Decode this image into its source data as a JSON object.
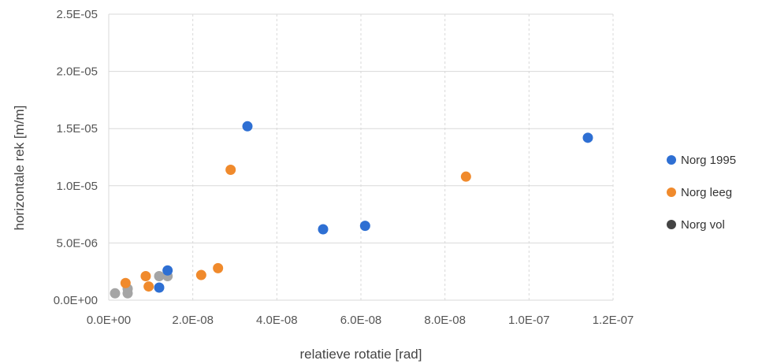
{
  "chart_data": {
    "type": "scatter",
    "xlabel": "relatieve rotatie [rad]",
    "ylabel": "horizontale rek [m/m]",
    "xlim": [
      0,
      1.2e-07
    ],
    "ylim": [
      0,
      2.5e-05
    ],
    "x_ticks": [
      {
        "value": 0,
        "label": "0.0E+00"
      },
      {
        "value": 2e-08,
        "label": "2.0E-08"
      },
      {
        "value": 4e-08,
        "label": "4.0E-08"
      },
      {
        "value": 6e-08,
        "label": "6.0E-08"
      },
      {
        "value": 8e-08,
        "label": "8.0E-08"
      },
      {
        "value": 1e-07,
        "label": "1.0E-07"
      },
      {
        "value": 1.2e-07,
        "label": "1.2E-07"
      }
    ],
    "y_ticks": [
      {
        "value": 0,
        "label": "0.0E+00"
      },
      {
        "value": 5e-06,
        "label": "5.0E-06"
      },
      {
        "value": 1e-05,
        "label": "1.0E-05"
      },
      {
        "value": 1.5e-05,
        "label": "1.5E-05"
      },
      {
        "value": 2e-05,
        "label": "2.0E-05"
      },
      {
        "value": 2.5e-05,
        "label": "2.5E-05"
      }
    ],
    "grid": true,
    "legend_position": "right",
    "series": [
      {
        "name": "Norg 1995",
        "color": "#2e6fd3",
        "points": [
          {
            "x": 3.3e-08,
            "y": 1.52e-05
          },
          {
            "x": 1.14e-07,
            "y": 1.42e-05
          },
          {
            "x": 6.1e-08,
            "y": 6.5e-06
          },
          {
            "x": 5.1e-08,
            "y": 6.2e-06
          },
          {
            "x": 1.4e-08,
            "y": 2.6e-06
          },
          {
            "x": 1.2e-08,
            "y": 1.1e-06
          }
        ]
      },
      {
        "name": "Norg leeg",
        "color": "#f08a2c",
        "points": [
          {
            "x": 8.5e-08,
            "y": 1.08e-05
          },
          {
            "x": 2.9e-08,
            "y": 1.14e-05
          },
          {
            "x": 2.6e-08,
            "y": 2.8e-06
          },
          {
            "x": 2.2e-08,
            "y": 2.2e-06
          },
          {
            "x": 4e-09,
            "y": 1.5e-06
          },
          {
            "x": 8.8e-09,
            "y": 2.1e-06
          },
          {
            "x": 9.5e-09,
            "y": 1.2e-06
          }
        ]
      },
      {
        "name": "Norg vol",
        "color": "#a5a5a5",
        "legend_marker_color": "#444444",
        "points": [
          {
            "x": 1.2e-08,
            "y": 2.1e-06
          },
          {
            "x": 1.4e-08,
            "y": 2.1e-06
          },
          {
            "x": 1.5e-09,
            "y": 6e-07
          },
          {
            "x": 4.5e-09,
            "y": 6e-07
          },
          {
            "x": 4.5e-09,
            "y": 1e-06
          }
        ]
      }
    ]
  }
}
